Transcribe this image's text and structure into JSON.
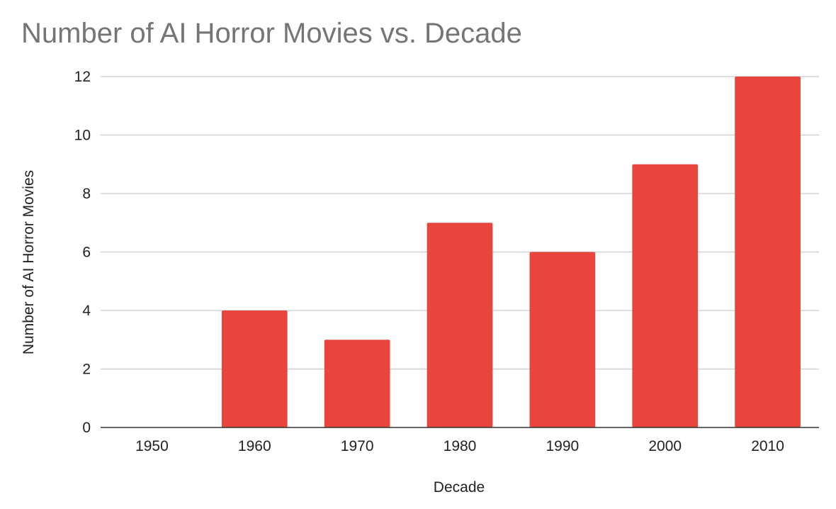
{
  "chart_data": {
    "type": "bar",
    "title": "Number of AI Horror Movies vs. Decade",
    "xlabel": "Decade",
    "ylabel": "Number of AI Horror Movies",
    "categories": [
      "1950",
      "1960",
      "1970",
      "1980",
      "1990",
      "2000",
      "2010"
    ],
    "values": [
      0,
      4,
      3,
      7,
      6,
      9,
      12
    ],
    "ylim": [
      0,
      12
    ],
    "yticks": [
      "0",
      "2",
      "4",
      "6",
      "8",
      "10",
      "12"
    ],
    "grid": true,
    "legend": "none",
    "colors": {
      "bar": "#e8453c",
      "title": "#757575",
      "text": "#222222",
      "grid": "#cccccc"
    }
  }
}
